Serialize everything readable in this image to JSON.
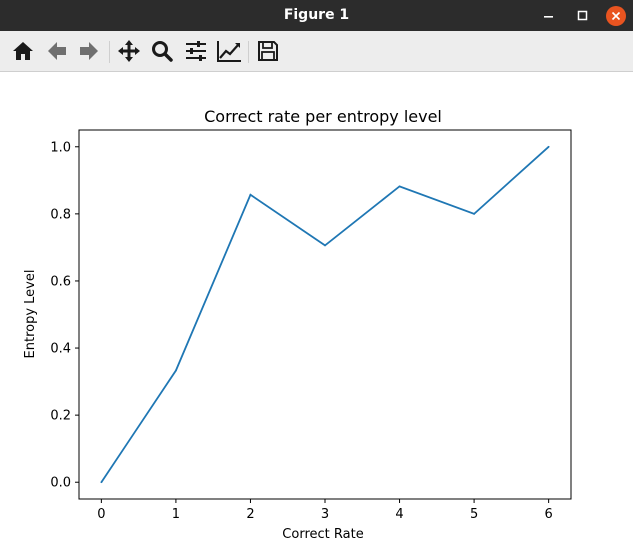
{
  "window": {
    "title": "Figure 1"
  },
  "toolbar": {
    "buttons": [
      {
        "icon": "home-icon"
      },
      {
        "icon": "back-arrow-icon"
      },
      {
        "icon": "forward-arrow-icon"
      },
      {
        "icon": "pan-icon"
      },
      {
        "icon": "zoom-icon"
      },
      {
        "icon": "configure-subplots-icon"
      },
      {
        "icon": "edit-axes-icon"
      },
      {
        "icon": "save-icon"
      }
    ]
  },
  "colors": {
    "titlebar": "#2c2c2c",
    "close": "#e95420",
    "line": "#1f77b4",
    "toolbar": "#ededed"
  },
  "chart_data": {
    "type": "line",
    "title": "Correct rate per entropy level",
    "xlabel": "Correct Rate",
    "ylabel": "Entropy Level",
    "x": [
      0,
      1,
      2,
      3,
      4,
      5,
      6
    ],
    "series": [
      {
        "values": [
          0.0,
          0.333,
          0.857,
          0.706,
          0.882,
          0.8,
          1.0
        ]
      }
    ],
    "xlim": [
      -0.3,
      6.3
    ],
    "ylim": [
      -0.05,
      1.05
    ],
    "xticks": [
      "0",
      "1",
      "2",
      "3",
      "4",
      "5",
      "6"
    ],
    "yticks": [
      "0.0",
      "0.2",
      "0.4",
      "0.6",
      "0.8",
      "1.0"
    ],
    "grid": false
  }
}
